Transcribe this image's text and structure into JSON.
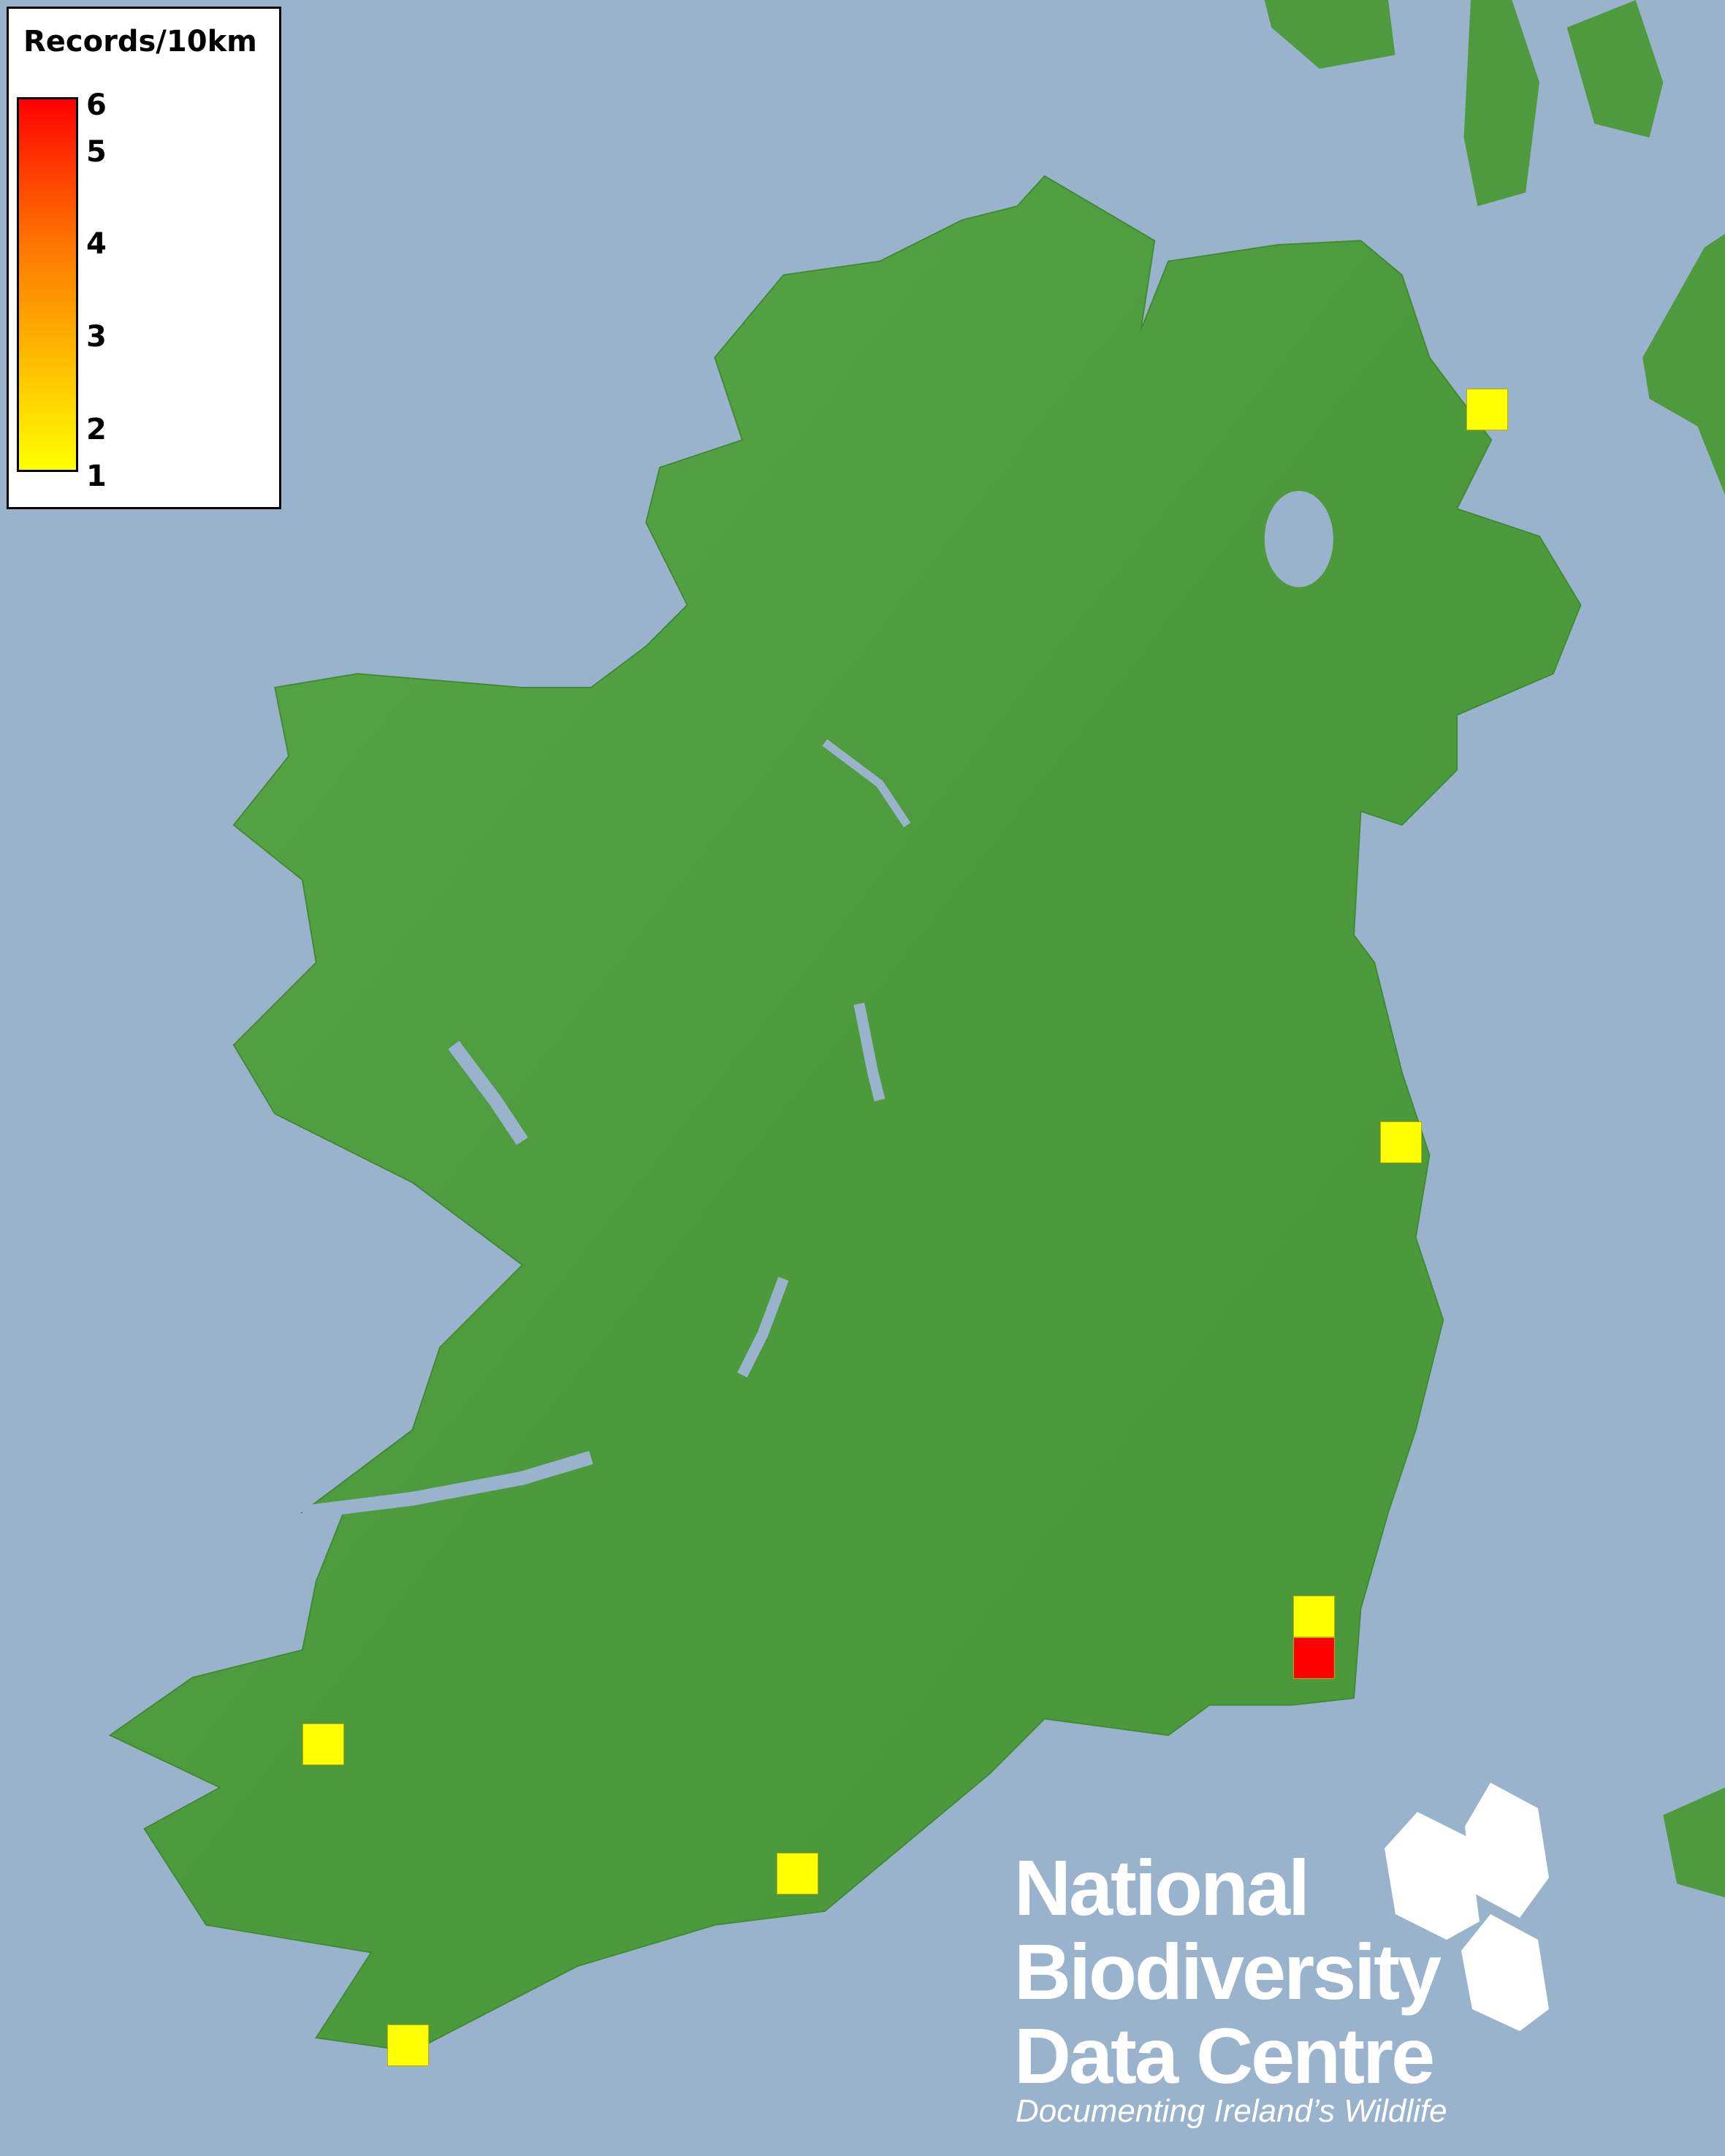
{
  "legend": {
    "title": "Records/10km",
    "ticks": [
      "6",
      "5",
      "4",
      "3",
      "2",
      "1"
    ],
    "min_color": "#ffff00",
    "max_color": "#ff0000"
  },
  "records": [
    {
      "location": "north-east coast, Antrim",
      "count": 1,
      "color": "#ffff00"
    },
    {
      "location": "east coast, Dublin",
      "count": 1,
      "color": "#ffff00"
    },
    {
      "location": "south-east coast, Wexford",
      "count": 1,
      "color": "#ffff00"
    },
    {
      "location": "south-east coast, Wexford (south)",
      "count": 6,
      "color": "#ff0000"
    },
    {
      "location": "south-west, Kerry",
      "count": 1,
      "color": "#ffff00"
    },
    {
      "location": "south coast, Cork",
      "count": 1,
      "color": "#ffff00"
    },
    {
      "location": "south-west tip, Cork",
      "count": 1,
      "color": "#ffff00"
    }
  ],
  "map": {
    "sea_color": "#9ab3cc",
    "land_color": "#4f9a3e"
  },
  "logo": {
    "line1": "National",
    "line2": "Biodiversity",
    "line3": "Data Centre",
    "tagline": "Documenting Ireland’s Wildlife"
  }
}
